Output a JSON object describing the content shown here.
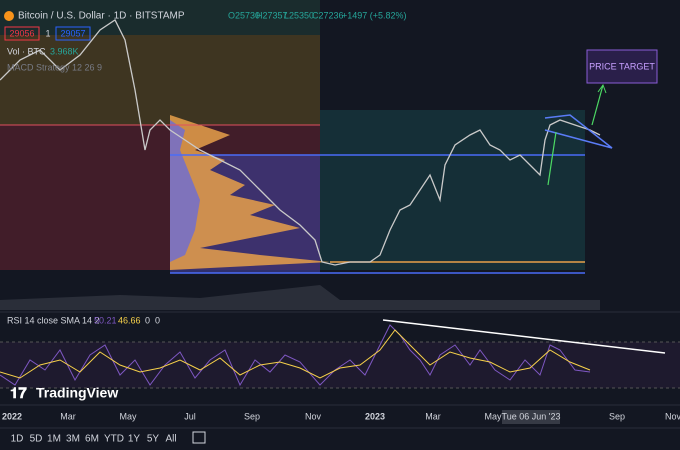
{
  "header": {
    "symbol": "Bitcoin / U.S. Dollar · 1D · BITSTAMP",
    "open": "O25730",
    "high": "H27357",
    "low": "L25350",
    "close": "C27236",
    "change": "+1497 (+5.82%)",
    "bid": "29056",
    "qty": "1",
    "ask": "29057",
    "volume_label": "Vol · BTC",
    "volume_value": "3.968K",
    "strategy": "MACD Strategy 12 26 9"
  },
  "annotation": "PRICE TARGET",
  "rsi": {
    "label": "RSI 14 close SMA 14 2",
    "rsi_value": "50.21",
    "sma_value": "46.66",
    "extra1": "0",
    "extra2": "0"
  },
  "watermark": "TradingView",
  "x_axis": [
    "2022",
    "Mar",
    "May",
    "Jul",
    "Sep",
    "Nov",
    "2023",
    "Mar",
    "May",
    "Sep",
    "Nov"
  ],
  "cursor_date": "Tue 06 Jun '23",
  "toolbar": [
    "1D",
    "5D",
    "1M",
    "3M",
    "6M",
    "YTD",
    "1Y",
    "5Y",
    "All"
  ]
}
